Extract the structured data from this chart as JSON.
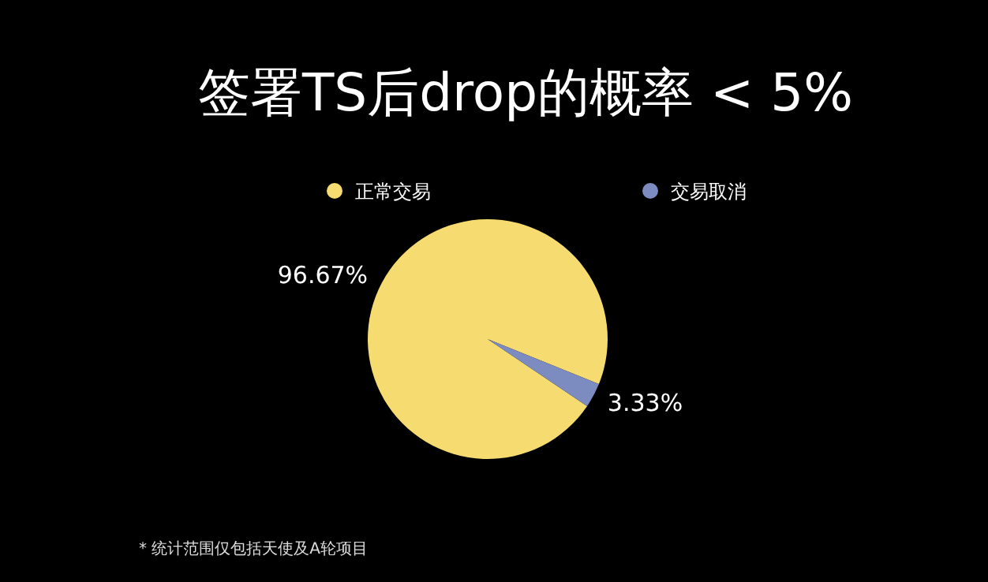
{
  "chart_data": {
    "type": "pie",
    "title": "签署TS后drop的概率 < 5%",
    "categories": [
      "正常交易",
      "交易取消"
    ],
    "values": [
      96.67,
      3.33
    ],
    "colors": [
      "#f6dc70",
      "#7c8cc0"
    ],
    "value_labels": [
      "96.67%",
      "3.33%"
    ],
    "legend": "top",
    "annotations": [
      "* 统计范围仅包括天使及A轮项目"
    ]
  }
}
